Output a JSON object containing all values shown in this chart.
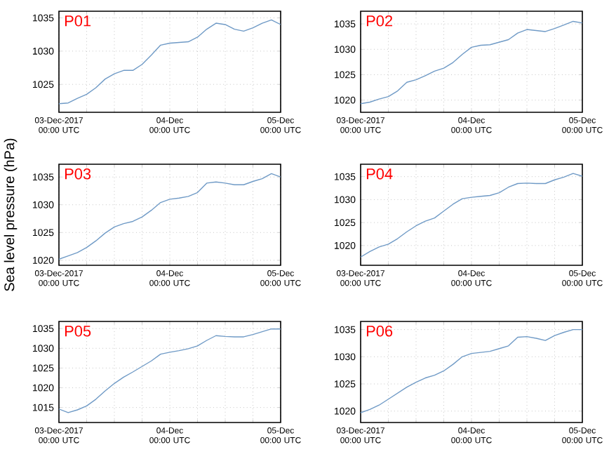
{
  "chart_data": [
    {
      "type": "line",
      "title": "P01",
      "x": [
        "2017-12-03T00:00",
        "2017-12-03T02:00",
        "2017-12-03T04:00",
        "2017-12-03T06:00",
        "2017-12-03T08:00",
        "2017-12-03T10:00",
        "2017-12-03T12:00",
        "2017-12-03T14:00",
        "2017-12-03T16:00",
        "2017-12-03T18:00",
        "2017-12-03T20:00",
        "2017-12-03T22:00",
        "2017-12-04T00:00",
        "2017-12-04T02:00",
        "2017-12-04T04:00",
        "2017-12-04T06:00",
        "2017-12-04T08:00",
        "2017-12-04T10:00",
        "2017-12-04T12:00",
        "2017-12-04T14:00",
        "2017-12-04T16:00",
        "2017-12-04T18:00",
        "2017-12-04T20:00",
        "2017-12-04T22:00",
        "2017-12-05T00:00"
      ],
      "xlim": [
        "2017-12-03T00:00",
        "2017-12-05T00:00"
      ],
      "xticks": [
        {
          "value": "2017-12-03T00:00",
          "label": "03-Dec-2017 00:00 UTC"
        },
        {
          "value": "2017-12-03T06:00",
          "label": null
        },
        {
          "value": "2017-12-03T12:00",
          "label": null
        },
        {
          "value": "2017-12-03T18:00",
          "label": null
        },
        {
          "value": "2017-12-04T00:00",
          "label": "04-Dec 00:00 UTC"
        },
        {
          "value": "2017-12-04T06:00",
          "label": null
        },
        {
          "value": "2017-12-04T12:00",
          "label": null
        },
        {
          "value": "2017-12-04T18:00",
          "label": null
        },
        {
          "value": "2017-12-05T00:00",
          "label": "05-Dec 00:00 UTC"
        }
      ],
      "ylim": [
        1020.8,
        1036
      ],
      "yticks": [
        1025,
        1030,
        1035
      ],
      "grid": true,
      "series": [
        {
          "color": "#6f9ac6",
          "values": [
            1022.1,
            1022.2,
            1022.9,
            1023.5,
            1024.5,
            1025.8,
            1026.6,
            1027.1,
            1027.1,
            1028.0,
            1029.4,
            1030.9,
            1031.2,
            1031.3,
            1031.4,
            1032.1,
            1033.3,
            1034.2,
            1034.0,
            1033.3,
            1033.0,
            1033.5,
            1034.2,
            1034.7,
            1034.0
          ]
        }
      ]
    },
    {
      "type": "line",
      "title": "P02",
      "x": [
        "2017-12-03T00:00",
        "2017-12-03T02:00",
        "2017-12-03T04:00",
        "2017-12-03T06:00",
        "2017-12-03T08:00",
        "2017-12-03T10:00",
        "2017-12-03T12:00",
        "2017-12-03T14:00",
        "2017-12-03T16:00",
        "2017-12-03T18:00",
        "2017-12-03T20:00",
        "2017-12-03T22:00",
        "2017-12-04T00:00",
        "2017-12-04T02:00",
        "2017-12-04T04:00",
        "2017-12-04T06:00",
        "2017-12-04T08:00",
        "2017-12-04T10:00",
        "2017-12-04T12:00",
        "2017-12-04T14:00",
        "2017-12-04T16:00",
        "2017-12-04T18:00",
        "2017-12-04T20:00",
        "2017-12-04T22:00",
        "2017-12-05T00:00"
      ],
      "xlim": [
        "2017-12-03T00:00",
        "2017-12-05T00:00"
      ],
      "xticks": [
        {
          "value": "2017-12-03T00:00",
          "label": "03-Dec-2017 00:00 UTC"
        },
        {
          "value": "2017-12-03T06:00",
          "label": null
        },
        {
          "value": "2017-12-03T12:00",
          "label": null
        },
        {
          "value": "2017-12-03T18:00",
          "label": null
        },
        {
          "value": "2017-12-04T00:00",
          "label": "04-Dec 00:00 UTC"
        },
        {
          "value": "2017-12-04T06:00",
          "label": null
        },
        {
          "value": "2017-12-04T12:00",
          "label": null
        },
        {
          "value": "2017-12-04T18:00",
          "label": null
        },
        {
          "value": "2017-12-05T00:00",
          "label": "05-Dec 00:00 UTC"
        }
      ],
      "ylim": [
        1017.6,
        1037.5
      ],
      "yticks": [
        1020,
        1025,
        1030,
        1035
      ],
      "grid": true,
      "series": [
        {
          "color": "#6f9ac6",
          "values": [
            1019.3,
            1019.6,
            1020.2,
            1020.7,
            1021.8,
            1023.5,
            1024.0,
            1024.8,
            1025.7,
            1026.3,
            1027.4,
            1029.0,
            1030.4,
            1030.8,
            1030.9,
            1031.4,
            1031.9,
            1033.2,
            1033.9,
            1033.7,
            1033.5,
            1034.1,
            1034.8,
            1035.5,
            1035.2
          ]
        }
      ]
    },
    {
      "type": "line",
      "title": "P03",
      "ylabel": "Sea level pressure (hPa)",
      "x": [
        "2017-12-03T00:00",
        "2017-12-03T02:00",
        "2017-12-03T04:00",
        "2017-12-03T06:00",
        "2017-12-03T08:00",
        "2017-12-03T10:00",
        "2017-12-03T12:00",
        "2017-12-03T14:00",
        "2017-12-03T16:00",
        "2017-12-03T18:00",
        "2017-12-03T20:00",
        "2017-12-03T22:00",
        "2017-12-04T00:00",
        "2017-12-04T02:00",
        "2017-12-04T04:00",
        "2017-12-04T06:00",
        "2017-12-04T08:00",
        "2017-12-04T10:00",
        "2017-12-04T12:00",
        "2017-12-04T14:00",
        "2017-12-04T16:00",
        "2017-12-04T18:00",
        "2017-12-04T20:00",
        "2017-12-04T22:00",
        "2017-12-05T00:00"
      ],
      "xlim": [
        "2017-12-03T00:00",
        "2017-12-05T00:00"
      ],
      "xticks": [
        {
          "value": "2017-12-03T00:00",
          "label": "03-Dec-2017 00:00 UTC"
        },
        {
          "value": "2017-12-03T06:00",
          "label": null
        },
        {
          "value": "2017-12-03T12:00",
          "label": null
        },
        {
          "value": "2017-12-03T18:00",
          "label": null
        },
        {
          "value": "2017-12-04T00:00",
          "label": "04-Dec 00:00 UTC"
        },
        {
          "value": "2017-12-04T06:00",
          "label": null
        },
        {
          "value": "2017-12-04T12:00",
          "label": null
        },
        {
          "value": "2017-12-04T18:00",
          "label": null
        },
        {
          "value": "2017-12-05T00:00",
          "label": "05-Dec 00:00 UTC"
        }
      ],
      "ylim": [
        1019.1,
        1037.3
      ],
      "yticks": [
        1020,
        1025,
        1030,
        1035
      ],
      "grid": true,
      "series": [
        {
          "color": "#6f9ac6",
          "values": [
            1020.2,
            1020.8,
            1021.4,
            1022.3,
            1023.5,
            1024.9,
            1026.0,
            1026.6,
            1027.0,
            1027.8,
            1029.0,
            1030.4,
            1031.0,
            1031.2,
            1031.5,
            1032.2,
            1033.9,
            1034.1,
            1033.9,
            1033.6,
            1033.6,
            1034.2,
            1034.7,
            1035.6,
            1035.0
          ]
        }
      ]
    },
    {
      "type": "line",
      "title": "P04",
      "x": [
        "2017-12-03T00:00",
        "2017-12-03T02:00",
        "2017-12-03T04:00",
        "2017-12-03T06:00",
        "2017-12-03T08:00",
        "2017-12-03T10:00",
        "2017-12-03T12:00",
        "2017-12-03T14:00",
        "2017-12-03T16:00",
        "2017-12-03T18:00",
        "2017-12-03T20:00",
        "2017-12-03T22:00",
        "2017-12-04T00:00",
        "2017-12-04T02:00",
        "2017-12-04T04:00",
        "2017-12-04T06:00",
        "2017-12-04T08:00",
        "2017-12-04T10:00",
        "2017-12-04T12:00",
        "2017-12-04T14:00",
        "2017-12-04T16:00",
        "2017-12-04T18:00",
        "2017-12-04T20:00",
        "2017-12-04T22:00",
        "2017-12-05T00:00"
      ],
      "xlim": [
        "2017-12-03T00:00",
        "2017-12-05T00:00"
      ],
      "xticks": [
        {
          "value": "2017-12-03T00:00",
          "label": "03-Dec-2017 00:00 UTC"
        },
        {
          "value": "2017-12-03T06:00",
          "label": null
        },
        {
          "value": "2017-12-03T12:00",
          "label": null
        },
        {
          "value": "2017-12-03T18:00",
          "label": null
        },
        {
          "value": "2017-12-04T00:00",
          "label": "04-Dec 00:00 UTC"
        },
        {
          "value": "2017-12-04T06:00",
          "label": null
        },
        {
          "value": "2017-12-04T12:00",
          "label": null
        },
        {
          "value": "2017-12-04T18:00",
          "label": null
        },
        {
          "value": "2017-12-05T00:00",
          "label": "05-Dec 00:00 UTC"
        }
      ],
      "ylim": [
        1015.7,
        1037.7
      ],
      "yticks": [
        1020,
        1025,
        1030,
        1035
      ],
      "grid": true,
      "series": [
        {
          "color": "#6f9ac6",
          "values": [
            1017.5,
            1018.7,
            1019.7,
            1020.3,
            1021.5,
            1023.0,
            1024.3,
            1025.3,
            1026.0,
            1027.5,
            1029.0,
            1030.2,
            1030.5,
            1030.7,
            1030.9,
            1031.5,
            1032.7,
            1033.5,
            1033.6,
            1033.5,
            1033.5,
            1034.3,
            1034.9,
            1035.7,
            1035.1
          ]
        }
      ]
    },
    {
      "type": "line",
      "title": "P05",
      "x": [
        "2017-12-03T00:00",
        "2017-12-03T02:00",
        "2017-12-03T04:00",
        "2017-12-03T06:00",
        "2017-12-03T08:00",
        "2017-12-03T10:00",
        "2017-12-03T12:00",
        "2017-12-03T14:00",
        "2017-12-03T16:00",
        "2017-12-03T18:00",
        "2017-12-03T20:00",
        "2017-12-03T22:00",
        "2017-12-04T00:00",
        "2017-12-04T02:00",
        "2017-12-04T04:00",
        "2017-12-04T06:00",
        "2017-12-04T08:00",
        "2017-12-04T10:00",
        "2017-12-04T12:00",
        "2017-12-04T14:00",
        "2017-12-04T16:00",
        "2017-12-04T18:00",
        "2017-12-04T20:00",
        "2017-12-04T22:00",
        "2017-12-05T00:00"
      ],
      "xlim": [
        "2017-12-03T00:00",
        "2017-12-05T00:00"
      ],
      "xticks": [
        {
          "value": "2017-12-03T00:00",
          "label": "03-Dec-2017 00:00 UTC"
        },
        {
          "value": "2017-12-03T06:00",
          "label": null
        },
        {
          "value": "2017-12-03T12:00",
          "label": null
        },
        {
          "value": "2017-12-03T18:00",
          "label": null
        },
        {
          "value": "2017-12-04T00:00",
          "label": "04-Dec 00:00 UTC"
        },
        {
          "value": "2017-12-04T06:00",
          "label": null
        },
        {
          "value": "2017-12-04T12:00",
          "label": null
        },
        {
          "value": "2017-12-04T18:00",
          "label": null
        },
        {
          "value": "2017-12-05T00:00",
          "label": "05-Dec 00:00 UTC"
        }
      ],
      "ylim": [
        1011.2,
        1036.8
      ],
      "yticks": [
        1015,
        1020,
        1025,
        1030,
        1035
      ],
      "grid": true,
      "series": [
        {
          "color": "#6f9ac6",
          "values": [
            1014.6,
            1013.7,
            1014.4,
            1015.4,
            1017.1,
            1019.2,
            1021.1,
            1022.7,
            1024.0,
            1025.4,
            1026.8,
            1028.5,
            1029.0,
            1029.4,
            1029.9,
            1030.6,
            1032.0,
            1033.2,
            1033.0,
            1032.9,
            1032.9,
            1033.5,
            1034.2,
            1034.9,
            1034.9
          ]
        }
      ]
    },
    {
      "type": "line",
      "title": "P06",
      "x": [
        "2017-12-03T00:00",
        "2017-12-03T02:00",
        "2017-12-03T04:00",
        "2017-12-03T06:00",
        "2017-12-03T08:00",
        "2017-12-03T10:00",
        "2017-12-03T12:00",
        "2017-12-03T14:00",
        "2017-12-03T16:00",
        "2017-12-03T18:00",
        "2017-12-03T20:00",
        "2017-12-03T22:00",
        "2017-12-04T00:00",
        "2017-12-04T02:00",
        "2017-12-04T04:00",
        "2017-12-04T06:00",
        "2017-12-04T08:00",
        "2017-12-04T10:00",
        "2017-12-04T12:00",
        "2017-12-04T14:00",
        "2017-12-04T16:00",
        "2017-12-04T18:00",
        "2017-12-04T20:00",
        "2017-12-04T22:00",
        "2017-12-05T00:00"
      ],
      "xlim": [
        "2017-12-03T00:00",
        "2017-12-05T00:00"
      ],
      "xticks": [
        {
          "value": "2017-12-03T00:00",
          "label": "03-Dec-2017 00:00 UTC"
        },
        {
          "value": "2017-12-03T06:00",
          "label": null
        },
        {
          "value": "2017-12-03T12:00",
          "label": null
        },
        {
          "value": "2017-12-03T18:00",
          "label": null
        },
        {
          "value": "2017-12-04T00:00",
          "label": "04-Dec 00:00 UTC"
        },
        {
          "value": "2017-12-04T06:00",
          "label": null
        },
        {
          "value": "2017-12-04T12:00",
          "label": null
        },
        {
          "value": "2017-12-04T18:00",
          "label": null
        },
        {
          "value": "2017-12-05T00:00",
          "label": "05-Dec 00:00 UTC"
        }
      ],
      "ylim": [
        1017.9,
        1036.5
      ],
      "yticks": [
        1020,
        1025,
        1030,
        1035
      ],
      "grid": true,
      "series": [
        {
          "color": "#6f9ac6",
          "values": [
            1019.7,
            1020.3,
            1021.1,
            1022.2,
            1023.3,
            1024.4,
            1025.3,
            1026.1,
            1026.6,
            1027.4,
            1028.6,
            1030.0,
            1030.6,
            1030.8,
            1031.0,
            1031.5,
            1032.0,
            1033.6,
            1033.7,
            1033.4,
            1033.0,
            1033.9,
            1034.5,
            1035.0,
            1035.0
          ]
        }
      ]
    }
  ]
}
